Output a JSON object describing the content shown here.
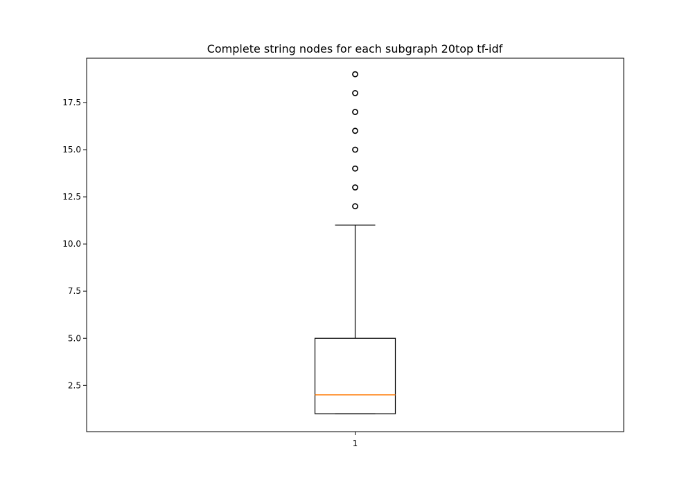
{
  "chart_data": {
    "type": "box",
    "title": "Complete string nodes for each subgraph 20top tf-idf",
    "xlabel": "",
    "ylabel": "",
    "categories": [
      "1"
    ],
    "ylim": [
      0.05,
      19.85
    ],
    "yticks": [
      2.5,
      5.0,
      7.5,
      10.0,
      12.5,
      15.0,
      17.5
    ],
    "ytick_labels": [
      "2.5",
      "5.0",
      "7.5",
      "10.0",
      "12.5",
      "15.0",
      "17.5"
    ],
    "boxes": [
      {
        "category": "1",
        "whisker_low": 1,
        "q1": 1,
        "median": 2,
        "q3": 5,
        "whisker_high": 11,
        "outliers": [
          12,
          13,
          14,
          15,
          16,
          17,
          18,
          19
        ]
      }
    ],
    "colors": {
      "box": "#000000",
      "median": "#ff7f0e",
      "outlier": "#000000"
    },
    "grid": false,
    "legend": "none"
  }
}
